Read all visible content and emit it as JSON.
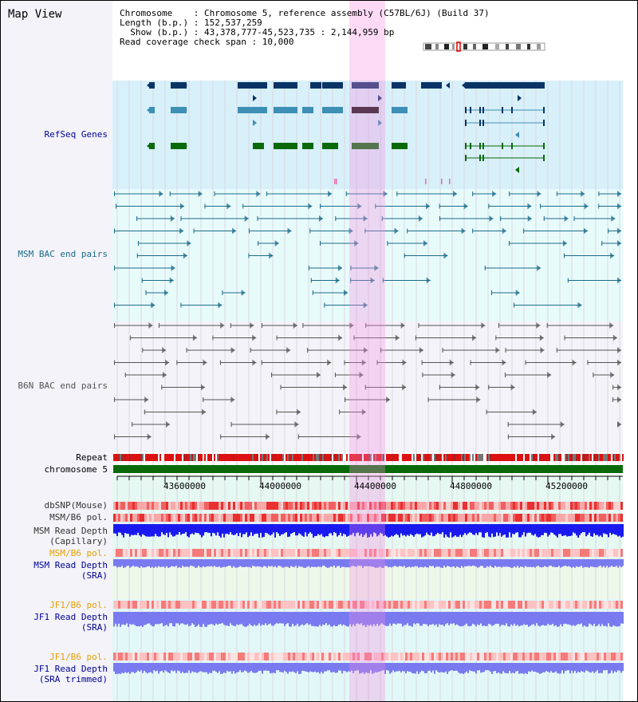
{
  "view": {
    "title": "Map View"
  },
  "header": {
    "line1": "Chromosome    : Chromosome 5, reference assembly (C57BL/6J) (Build 37)",
    "line2": "Length (b.p.) : 152,537,259",
    "line3": "  Show (b.p.) : 43,378,777-45,523,735 : 2,144,959 bp",
    "line4": "Read coverage check span : 10,000"
  },
  "tracks": {
    "refseq": "RefSeq Genes",
    "msm_bac": "MSM BAC end pairs",
    "b6n_bac": "B6N BAC end pairs",
    "repeat": "Repeat",
    "chromosome": "chromosome 5",
    "dbsnp": "dbSNP(Mouse)",
    "msm_b6_pol": "MSM/B6 pol.",
    "msm_depth_cap_1": "MSM Read Depth",
    "msm_depth_cap_2": "(Capillary)",
    "msm_b6_pol2": "MSM/B6 pol.",
    "msm_depth_sra_1": "MSM Read Depth",
    "msm_depth_sra_2": "(SRA)",
    "jf1_b6_pol": "JF1/B6 pol.",
    "jf1_depth_sra_1": "JF1 Read Depth",
    "jf1_depth_sra_2": "(SRA)",
    "jf1_b6_pol2": "JF1/B6 pol.",
    "jf1_depth_trim_1": "JF1 Read Depth",
    "jf1_depth_trim_2": "(SRA trimmed)"
  },
  "axis": {
    "ticks": [
      "43600000",
      "44000000",
      "44400000",
      "44800000",
      "45200000"
    ]
  },
  "colors": {
    "refseq_bg": "#d8f0fa",
    "msm_bg": "#e8fbfb",
    "b6n_bg": "#f3f3f9",
    "refseq_dark": "#0a3366",
    "refseq_mid": "#3d8fb5",
    "refseq_green": "#0a6a0a",
    "msm_line": "#1a6b8a",
    "b6n_line": "#555555",
    "chrom": "#0a6a0a",
    "depth_blue": "#1a1af0",
    "depth_light": "#7a7af0",
    "highlight": "#f58ce1"
  }
}
